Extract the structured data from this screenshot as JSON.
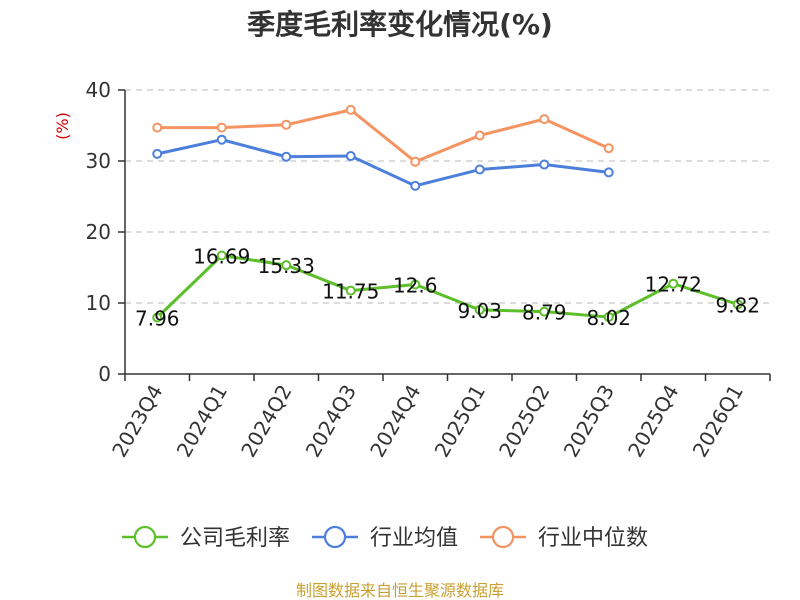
{
  "chart_data": {
    "type": "line",
    "title": "季度毛利率变化情况(%)",
    "ylabel": "(%)",
    "ylim": [
      0,
      40
    ],
    "yticks": [
      0,
      10,
      20,
      30,
      40
    ],
    "grid": true,
    "legend_position": "bottom",
    "categories": [
      "2023Q4",
      "2024Q1",
      "2024Q2",
      "2024Q3",
      "2024Q4",
      "2025Q1",
      "2025Q2",
      "2025Q3",
      "2025Q4",
      "2026Q1"
    ],
    "series": [
      {
        "name": "公司毛利率",
        "color": "#5cbf2a",
        "values": [
          7.96,
          16.69,
          15.33,
          11.75,
          12.6,
          9.03,
          8.79,
          8.02,
          12.72,
          9.82
        ],
        "labels": [
          "7.96",
          "16.69",
          "15.33",
          "11.75",
          "12.6",
          "9.03",
          "8.79",
          "8.02",
          "12.72",
          "9.82"
        ]
      },
      {
        "name": "行业均值",
        "color": "#4c7fdc",
        "values": [
          31.0,
          33.0,
          30.6,
          30.7,
          26.5,
          28.8,
          29.5,
          28.4,
          null,
          null
        ]
      },
      {
        "name": "行业中位数",
        "color": "#f59361",
        "values": [
          34.7,
          34.7,
          35.1,
          37.2,
          29.9,
          33.6,
          35.9,
          31.8,
          null,
          null
        ]
      }
    ]
  },
  "source": "制图数据来自恒生聚源数据库"
}
